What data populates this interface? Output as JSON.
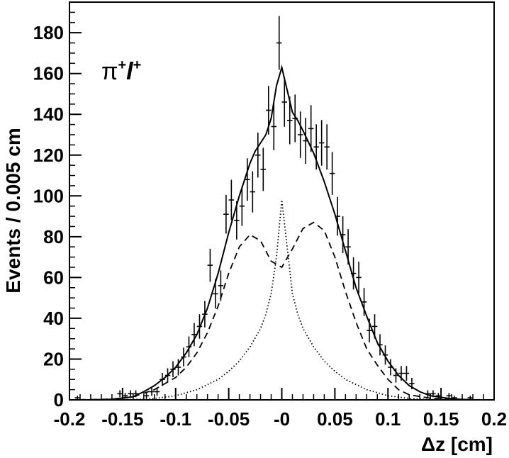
{
  "chart_data": {
    "type": "scatter",
    "title": "",
    "xlabel": "Δz [cm]",
    "ylabel": "Events / 0.005 cm",
    "annotation": {
      "base": "π",
      "sup1": "+",
      "mid": "l",
      "sup2": "+"
    },
    "xlim": [
      -0.2,
      0.2
    ],
    "ylim": [
      0,
      195
    ],
    "x_ticks": [
      -0.2,
      -0.15,
      -0.1,
      -0.05,
      0,
      0.05,
      0.1,
      0.15,
      0.2
    ],
    "x_tick_labels": [
      "-0.2",
      "-0.15",
      "-0.1",
      "-0.05",
      "-0",
      "0.05",
      "0.1",
      "0.15",
      "0.2"
    ],
    "y_ticks": [
      0,
      20,
      40,
      60,
      80,
      100,
      120,
      140,
      160,
      180
    ],
    "y_tick_labels": [
      "0",
      "20",
      "40",
      "60",
      "80",
      "100",
      "120",
      "140",
      "160",
      "180"
    ],
    "grid": false,
    "legend": "none",
    "bin_width": 0.005,
    "data_points": {
      "x": [
        -0.1925,
        -0.1525,
        -0.1475,
        -0.1425,
        -0.1375,
        -0.1275,
        -0.1225,
        -0.1175,
        -0.1125,
        -0.1075,
        -0.1025,
        -0.0975,
        -0.0925,
        -0.0875,
        -0.0825,
        -0.0775,
        -0.0725,
        -0.0675,
        -0.0625,
        -0.0575,
        -0.0525,
        -0.0475,
        -0.0425,
        -0.0375,
        -0.0325,
        -0.0275,
        -0.0225,
        -0.0175,
        -0.0125,
        -0.0075,
        -0.0025,
        0.0025,
        0.0075,
        0.0125,
        0.0175,
        0.0225,
        0.0275,
        0.0325,
        0.0375,
        0.0425,
        0.0475,
        0.0525,
        0.0575,
        0.0625,
        0.0675,
        0.0725,
        0.0775,
        0.0825,
        0.0875,
        0.0925,
        0.0975,
        0.1025,
        0.1075,
        0.1125,
        0.1175,
        0.1225,
        0.1375,
        0.1425,
        0.1475,
        0.1575,
        0.1625,
        0.1775
      ],
      "y": [
        1,
        3,
        2,
        3,
        3,
        2,
        4,
        4,
        10,
        12,
        15,
        16,
        21,
        26,
        32,
        36,
        42,
        66,
        52,
        56,
        91,
        98,
        88,
        95,
        108,
        102,
        120,
        113,
        142,
        134,
        175,
        146,
        137,
        138,
        130,
        127,
        133,
        124,
        126,
        124,
        111,
        90,
        81,
        75,
        62,
        60,
        48,
        34,
        36,
        27,
        22,
        16,
        12,
        13,
        13,
        8,
        3,
        3,
        2,
        2,
        1,
        1
      ],
      "err": [
        1,
        1.7,
        1.4,
        1.7,
        1.7,
        1.4,
        2,
        2,
        3.2,
        3.5,
        3.9,
        4,
        4.6,
        5.1,
        5.7,
        6,
        6.5,
        8.1,
        7.2,
        7.5,
        9.5,
        9.9,
        9.4,
        9.7,
        10.4,
        10.1,
        11,
        10.6,
        11.9,
        11.6,
        13.2,
        12.1,
        11.7,
        11.7,
        11.4,
        11.3,
        11.5,
        11.1,
        11.2,
        11.1,
        10.5,
        9.5,
        9,
        8.7,
        7.9,
        7.7,
        6.9,
        5.8,
        6,
        5.2,
        4.7,
        4,
        3.5,
        3.6,
        3.6,
        2.8,
        1.7,
        1.7,
        1.4,
        1.4,
        1,
        1
      ]
    },
    "series": [
      {
        "style": "solid",
        "x": [
          -0.2,
          -0.18,
          -0.16,
          -0.14,
          -0.13,
          -0.12,
          -0.11,
          -0.1,
          -0.09,
          -0.08,
          -0.07,
          -0.06,
          -0.05,
          -0.04,
          -0.03,
          -0.025,
          -0.02,
          -0.015,
          -0.01,
          -0.005,
          0,
          0.005,
          0.01,
          0.015,
          0.02,
          0.03,
          0.04,
          0.05,
          0.06,
          0.07,
          0.08,
          0.09,
          0.1,
          0.11,
          0.12,
          0.13,
          0.14,
          0.16,
          0.18,
          0.2
        ],
        "y": [
          0,
          0,
          0.3,
          1.5,
          4,
          7,
          11,
          16,
          23,
          32,
          45,
          62,
          82,
          100,
          116,
          122,
          126,
          130,
          138,
          154,
          163,
          152,
          141,
          137,
          132,
          121,
          107,
          91,
          73,
          55,
          41,
          28,
          19,
          12,
          7,
          4,
          2,
          0.5,
          0,
          0
        ]
      },
      {
        "style": "dashed",
        "x": [
          -0.2,
          -0.16,
          -0.14,
          -0.12,
          -0.1,
          -0.09,
          -0.08,
          -0.07,
          -0.06,
          -0.05,
          -0.04,
          -0.03,
          -0.02,
          -0.01,
          0,
          0.01,
          0.02,
          0.03,
          0.04,
          0.05,
          0.06,
          0.07,
          0.08,
          0.09,
          0.1,
          0.11,
          0.12,
          0.14,
          0.16,
          0.2
        ],
        "y": [
          0,
          0.3,
          1.5,
          5,
          11,
          16,
          23,
          33,
          46,
          62,
          75,
          81,
          78,
          68,
          65,
          74,
          84,
          87,
          83,
          70,
          53,
          38,
          25,
          17,
          10,
          5,
          2.5,
          0.8,
          0.2,
          0
        ]
      },
      {
        "style": "dotted",
        "x": [
          -0.2,
          -0.14,
          -0.12,
          -0.1,
          -0.08,
          -0.06,
          -0.05,
          -0.04,
          -0.03,
          -0.02,
          -0.015,
          -0.01,
          -0.005,
          0,
          0.005,
          0.01,
          0.015,
          0.02,
          0.03,
          0.04,
          0.05,
          0.06,
          0.08,
          0.1,
          0.12,
          0.14,
          0.2
        ],
        "y": [
          0,
          0.2,
          0.7,
          2,
          5,
          10,
          14,
          19,
          26,
          35,
          42,
          52,
          70,
          98,
          75,
          52,
          42,
          35,
          26,
          19,
          14,
          10,
          5,
          2,
          0.7,
          0.2,
          0
        ]
      }
    ]
  }
}
